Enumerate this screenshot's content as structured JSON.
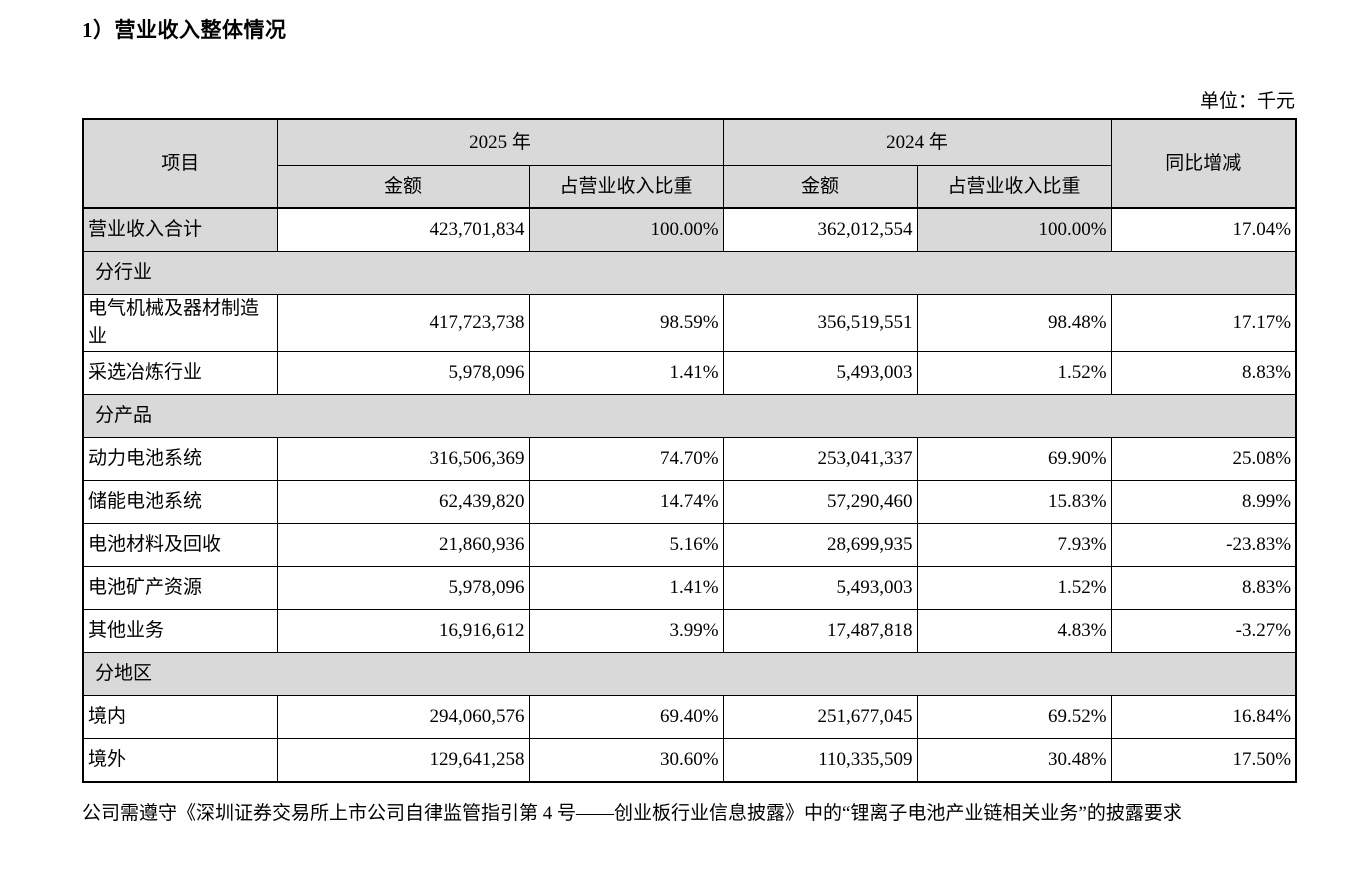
{
  "title": "1）营业收入整体情况",
  "unit_label": "单位：千元",
  "table": {
    "header": {
      "item": "项目",
      "year_2025": "2025 年",
      "year_2024": "2024 年",
      "amount": "金额",
      "share": "占营业收入比重",
      "yoy": "同比增减"
    },
    "rows": [
      {
        "type": "data",
        "highlight": true,
        "label": "营业收入合计",
        "a2025": "423,701,834",
        "p2025": "100.00%",
        "a2024": "362,012,554",
        "p2024": "100.00%",
        "yoy": "17.04%"
      },
      {
        "type": "section",
        "label": "分行业"
      },
      {
        "type": "data",
        "highlight": false,
        "label": "电气机械及器材制造业",
        "a2025": "417,723,738",
        "p2025": "98.59%",
        "a2024": "356,519,551",
        "p2024": "98.48%",
        "yoy": "17.17%"
      },
      {
        "type": "data",
        "highlight": false,
        "label": "采选冶炼行业",
        "a2025": "5,978,096",
        "p2025": "1.41%",
        "a2024": "5,493,003",
        "p2024": "1.52%",
        "yoy": "8.83%"
      },
      {
        "type": "section",
        "label": "分产品"
      },
      {
        "type": "data",
        "highlight": false,
        "label": "动力电池系统",
        "a2025": "316,506,369",
        "p2025": "74.70%",
        "a2024": "253,041,337",
        "p2024": "69.90%",
        "yoy": "25.08%"
      },
      {
        "type": "data",
        "highlight": false,
        "label": "储能电池系统",
        "a2025": "62,439,820",
        "p2025": "14.74%",
        "a2024": "57,290,460",
        "p2024": "15.83%",
        "yoy": "8.99%"
      },
      {
        "type": "data",
        "highlight": false,
        "label": "电池材料及回收",
        "a2025": "21,860,936",
        "p2025": "5.16%",
        "a2024": "28,699,935",
        "p2024": "7.93%",
        "yoy": "-23.83%"
      },
      {
        "type": "data",
        "highlight": false,
        "label": "电池矿产资源",
        "a2025": "5,978,096",
        "p2025": "1.41%",
        "a2024": "5,493,003",
        "p2024": "1.52%",
        "yoy": "8.83%"
      },
      {
        "type": "data",
        "highlight": false,
        "label": "其他业务",
        "a2025": "16,916,612",
        "p2025": "3.99%",
        "a2024": "17,487,818",
        "p2024": "4.83%",
        "yoy": "-3.27%"
      },
      {
        "type": "section",
        "label": "分地区"
      },
      {
        "type": "data",
        "highlight": false,
        "label": "境内",
        "a2025": "294,060,576",
        "p2025": "69.40%",
        "a2024": "251,677,045",
        "p2024": "69.52%",
        "yoy": "16.84%"
      },
      {
        "type": "data",
        "highlight": false,
        "label": "境外",
        "a2025": "129,641,258",
        "p2025": "30.60%",
        "a2024": "110,335,509",
        "p2024": "30.48%",
        "yoy": "17.50%"
      }
    ]
  },
  "footnote": "公司需遵守《深圳证券交易所上市公司自律监管指引第 4 号——创业板行业信息披露》中的“锂离子电池产业链相关业务”的披露要求",
  "colors": {
    "shading": "#d9d9d9",
    "border": "#000000",
    "text": "#000000",
    "background": "#ffffff"
  }
}
